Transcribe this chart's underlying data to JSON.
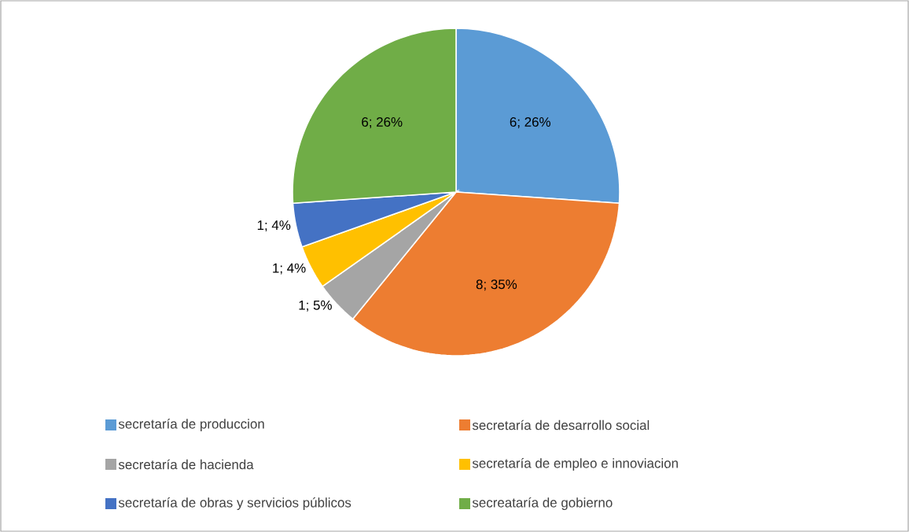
{
  "chart_data": {
    "type": "pie",
    "categories": [
      "secretaría de produccion",
      "secretaría de desarrollo social",
      "secretaría de hacienda",
      "secretaría de empleo e innoviacion",
      "secretaría de obras y servicios públicos",
      "secreataría de gobierno"
    ],
    "values": [
      6,
      8,
      1,
      1,
      1,
      6
    ],
    "colors": [
      "#5b9bd5",
      "#ed7d31",
      "#a5a5a5",
      "#ffc000",
      "#4472c4",
      "#70ad47"
    ],
    "value_labels": [
      "6; 26%",
      "8; 35%",
      "1; 5%",
      "1; 4%",
      "1; 4%",
      "6; 26%"
    ],
    "legend": "bottom"
  }
}
